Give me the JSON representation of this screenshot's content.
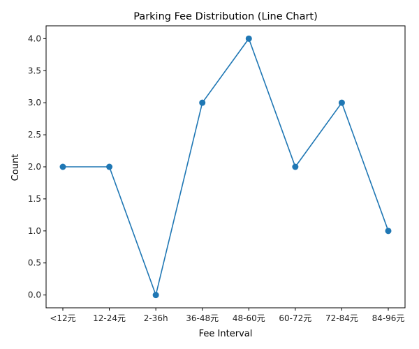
{
  "chart_data": {
    "type": "line",
    "title": "Parking Fee Distribution (Line Chart)",
    "xlabel": "Fee Interval",
    "ylabel": "Count",
    "categories": [
      "<12元",
      "12-24元",
      "2-36h",
      "36-48元",
      "48-60元",
      "60-72元",
      "72-84元",
      "84-96元"
    ],
    "series": [
      {
        "values": [
          2,
          2,
          0,
          3,
          4,
          2,
          3,
          1
        ],
        "color": "#1f77b4",
        "marker": "circle"
      }
    ],
    "ylim": [
      -0.2,
      4.2
    ],
    "yticks": [
      "0.0",
      "0.5",
      "1.0",
      "1.5",
      "2.0",
      "2.5",
      "3.0",
      "3.5",
      "4.0"
    ],
    "grid": false,
    "legend": "none"
  }
}
